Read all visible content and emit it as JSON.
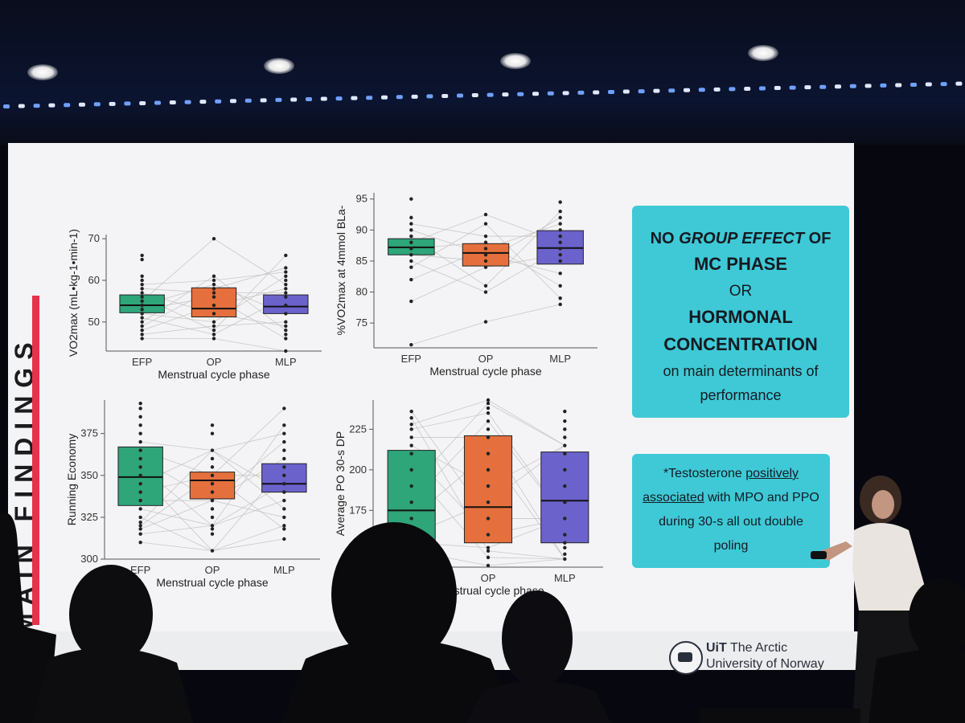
{
  "colors": {
    "efp": "#2fa57a",
    "op": "#e5703d",
    "mlp": "#6c62cc",
    "card": "#3fc9d6",
    "accent_bar": "#e8324a"
  },
  "slide": {
    "sidebar_title": "MAIN FINDINGS",
    "card_primary": {
      "line1_a": "NO ",
      "line1_b": "GROUP EFFECT",
      "line1_c": " OF",
      "line2": "MC PHASE",
      "line3": "OR",
      "line4": "HORMONAL",
      "line5": "CONCENTRATION",
      "line6": "on main determinants of",
      "line7": "performance"
    },
    "card_secondary": {
      "line1_a": "*Testosterone ",
      "line1_b": "positively",
      "line2_a": "associated",
      "line2_b": " with MPO and PPO",
      "line3": "during 30-s all out double",
      "line4": "poling"
    },
    "logo": {
      "name_bold": "UiT",
      "name_rest": " The Arctic",
      "name_line2": "University of Norway",
      "seal_icon": "uit-seal-icon"
    }
  },
  "chart_data": [
    {
      "type": "box",
      "ylabel": "VO2max (mL•kg-1•min-1)",
      "xlabel": "Menstrual cycle phase",
      "categories": [
        "EFP",
        "OP",
        "MLP"
      ],
      "ylim": [
        43,
        71
      ],
      "yticks": [
        50,
        60,
        70
      ],
      "boxes": [
        {
          "q1": 52.2,
          "median": 54.0,
          "q3": 56.5
        },
        {
          "q1": 51.2,
          "median": 53.2,
          "q3": 58.2
        },
        {
          "q1": 52.0,
          "median": 53.7,
          "q3": 56.5
        }
      ],
      "points": [
        [
          46,
          47,
          48,
          49,
          50,
          51,
          52,
          53,
          54,
          55,
          56,
          57,
          58,
          59,
          60,
          61,
          65,
          66
        ],
        [
          46,
          47,
          48,
          49,
          50,
          52,
          54,
          56,
          57,
          58,
          59,
          60,
          61,
          70
        ],
        [
          43,
          46,
          47,
          48,
          49,
          50,
          52,
          54,
          56,
          57,
          58,
          59,
          60,
          61,
          62,
          63,
          66
        ]
      ]
    },
    {
      "type": "box",
      "ylabel": "%VO2max at 4mmol BLa-",
      "xlabel": "Menstrual cycle phase",
      "categories": [
        "EFP",
        "OP",
        "MLP"
      ],
      "ylim": [
        71,
        96
      ],
      "yticks": [
        75,
        80,
        85,
        90,
        95
      ],
      "boxes": [
        {
          "q1": 86.0,
          "median": 87.2,
          "q3": 88.6
        },
        {
          "q1": 84.2,
          "median": 86.3,
          "q3": 87.8
        },
        {
          "q1": 84.5,
          "median": 87.1,
          "q3": 89.9
        }
      ],
      "points": [
        [
          71.5,
          78.5,
          82,
          84,
          85,
          86,
          87,
          88,
          89,
          90,
          91,
          92,
          95
        ],
        [
          75.2,
          80,
          81,
          84,
          85,
          86,
          87,
          88,
          89,
          91,
          92.5
        ],
        [
          78,
          79,
          81,
          83,
          85,
          86,
          87,
          88,
          89,
          90,
          91,
          92,
          93,
          94.5
        ]
      ]
    },
    {
      "type": "box",
      "ylabel": "Running Economy",
      "xlabel": "Menstrual cycle phase",
      "categories": [
        "EFP",
        "OP",
        "MLP"
      ],
      "ylim": [
        300,
        395
      ],
      "yticks": [
        300,
        325,
        350,
        375
      ],
      "boxes": [
        {
          "q1": 332,
          "median": 349,
          "q3": 367
        },
        {
          "q1": 336,
          "median": 347,
          "q3": 352
        },
        {
          "q1": 340,
          "median": 345,
          "q3": 357
        }
      ],
      "points": [
        [
          310,
          315,
          318,
          320,
          322,
          325,
          330,
          335,
          340,
          345,
          350,
          355,
          360,
          365,
          370,
          375,
          380,
          385,
          390,
          393
        ],
        [
          305,
          315,
          318,
          320,
          325,
          330,
          335,
          340,
          345,
          350,
          355,
          360,
          365,
          375,
          380
        ],
        [
          312,
          318,
          320,
          325,
          330,
          335,
          340,
          345,
          350,
          355,
          360,
          365,
          370,
          375,
          380,
          390
        ]
      ]
    },
    {
      "type": "box",
      "ylabel": "Average PO 30-s DP",
      "xlabel": "Menstrual cycle phase",
      "categories": [
        "EFP",
        "OP",
        "MLP"
      ],
      "ylim": [
        140,
        243
      ],
      "yticks": [
        150,
        175,
        200,
        225
      ],
      "boxes": [
        {
          "q1": 151,
          "median": 175,
          "q3": 212
        },
        {
          "q1": 155,
          "median": 177,
          "q3": 221
        },
        {
          "q1": 155,
          "median": 181,
          "q3": 211
        }
      ],
      "points": [
        [
          150,
          155,
          160,
          170,
          180,
          190,
          200,
          210,
          215,
          220,
          225,
          228,
          232,
          236
        ],
        [
          141,
          146,
          150,
          152,
          160,
          170,
          180,
          190,
          200,
          210,
          220,
          225,
          230,
          235,
          238,
          241,
          243
        ],
        [
          145,
          148,
          152,
          155,
          160,
          170,
          180,
          190,
          200,
          210,
          215,
          220,
          225,
          230,
          236
        ]
      ]
    }
  ]
}
